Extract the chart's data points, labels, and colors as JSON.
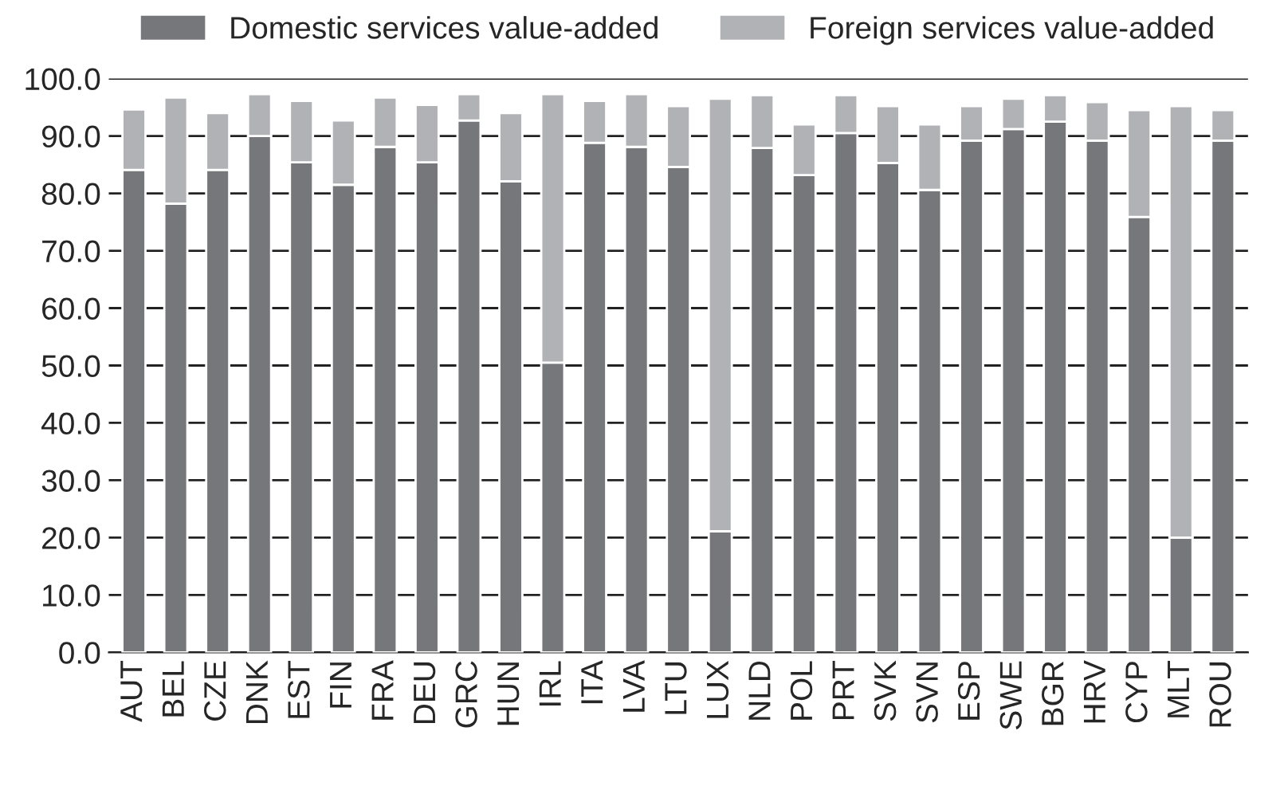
{
  "chart_data": {
    "type": "bar",
    "stacked": true,
    "categories": [
      "AUT",
      "BEL",
      "CZE",
      "DNK",
      "EST",
      "FIN",
      "FRA",
      "DEU",
      "GRC",
      "HUN",
      "IRL",
      "ITA",
      "LVA",
      "LTU",
      "LUX",
      "NLD",
      "POL",
      "PRT",
      "SVK",
      "SVN",
      "ESP",
      "SWE",
      "BGR",
      "HRV",
      "CYP",
      "MLT",
      "ROU"
    ],
    "series": [
      {
        "name": "Domestic services value-added",
        "color": "#76777b",
        "values": [
          84.1,
          78.2,
          84.1,
          90.0,
          85.4,
          81.5,
          88.1,
          85.4,
          92.7,
          82.1,
          50.5,
          88.8,
          88.1,
          84.6,
          21.1,
          87.9,
          83.2,
          90.5,
          85.3,
          80.6,
          89.2,
          91.2,
          92.5,
          89.2,
          75.9,
          20.0,
          89.2
        ]
      },
      {
        "name": "Foreign services value-added",
        "color": "#b1b2b5",
        "values": [
          10.5,
          18.5,
          9.9,
          7.3,
          10.7,
          11.2,
          8.6,
          10.0,
          4.6,
          11.9,
          46.8,
          7.3,
          9.2,
          10.6,
          75.4,
          9.2,
          8.8,
          6.6,
          9.9,
          11.4,
          6.0,
          5.3,
          4.6,
          6.7,
          18.6,
          75.2,
          5.3
        ]
      }
    ],
    "ylim": [
      0,
      100
    ],
    "yticks": [
      {
        "value": 0,
        "label": "0.0"
      },
      {
        "value": 10,
        "label": "10.0"
      },
      {
        "value": 20,
        "label": "20.0"
      },
      {
        "value": 30,
        "label": "30.0"
      },
      {
        "value": 40,
        "label": "40.0"
      },
      {
        "value": 50,
        "label": "50.0"
      },
      {
        "value": 60,
        "label": "60.0"
      },
      {
        "value": 70,
        "label": "70.0"
      },
      {
        "value": 80,
        "label": "80.0"
      },
      {
        "value": 90,
        "label": "90.0"
      },
      {
        "value": 100,
        "label": "100.0"
      }
    ],
    "grid": "y",
    "legend": "top"
  }
}
